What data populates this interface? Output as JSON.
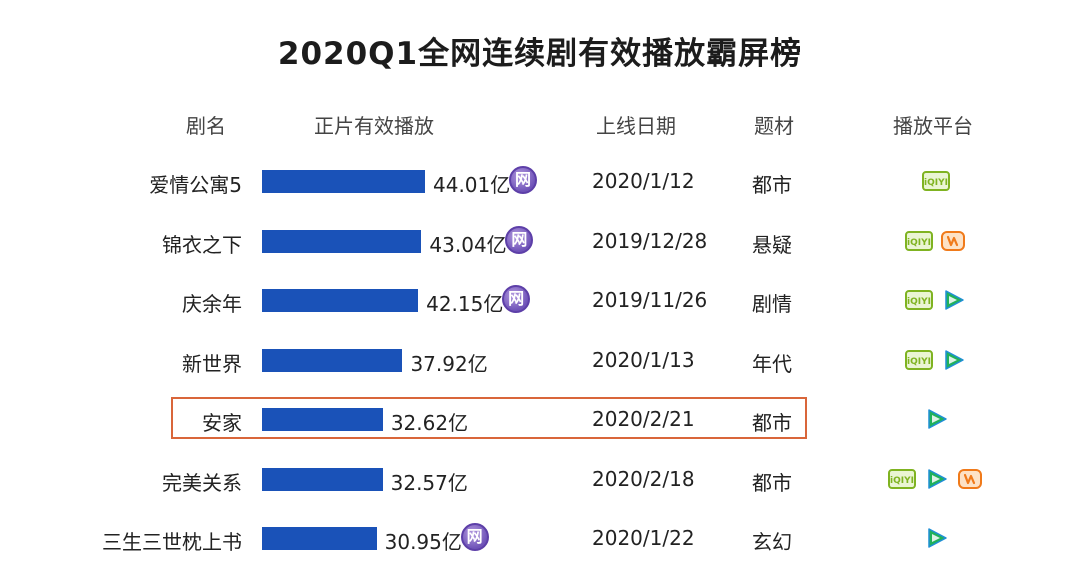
{
  "chart_data": {
    "type": "bar",
    "orientation": "horizontal",
    "title": "2020Q1全网连续剧有效播放霸屏榜",
    "columns": [
      "剧名",
      "正片有效播放",
      "上线日期",
      "题材",
      "播放平台"
    ],
    "unit": "亿",
    "categories": [
      "爱情公寓5",
      "锦衣之下",
      "庆余年",
      "新世界",
      "安家",
      "完美关系",
      "三生三世枕上书"
    ],
    "values": [
      44.01,
      43.04,
      42.15,
      37.92,
      32.62,
      32.57,
      30.95
    ],
    "value_labels": [
      "44.01亿",
      "43.04亿",
      "42.15亿",
      "37.92亿",
      "32.62亿",
      "32.57亿",
      "30.95亿"
    ],
    "dates": [
      "2020/1/12",
      "2019/12/28",
      "2019/11/26",
      "2020/1/13",
      "2020/2/21",
      "2020/2/18",
      "2020/1/22"
    ],
    "genres": [
      "都市",
      "悬疑",
      "剧情",
      "年代",
      "都市",
      "都市",
      "玄幻"
    ],
    "wang_badge": [
      true,
      true,
      true,
      false,
      false,
      false,
      true
    ],
    "wang_badge_text": "网",
    "platforms": [
      [
        "iqiyi"
      ],
      [
        "iqiyi",
        "mango"
      ],
      [
        "iqiyi",
        "tencent"
      ],
      [
        "iqiyi",
        "tencent"
      ],
      [
        "tencent"
      ],
      [
        "iqiyi",
        "tencent",
        "mango"
      ],
      [
        "tencent"
      ]
    ],
    "platform_labels": {
      "iqiyi": "iQIYI"
    },
    "highlighted_category": "安家",
    "colors": {
      "bar": "#1a52b8",
      "highlight_border": "#d9663a",
      "wang_badge": "#6f53b8",
      "iqiyi": "#7fb321",
      "tencent": "#20b15a",
      "mango": "#f07a1a"
    }
  }
}
